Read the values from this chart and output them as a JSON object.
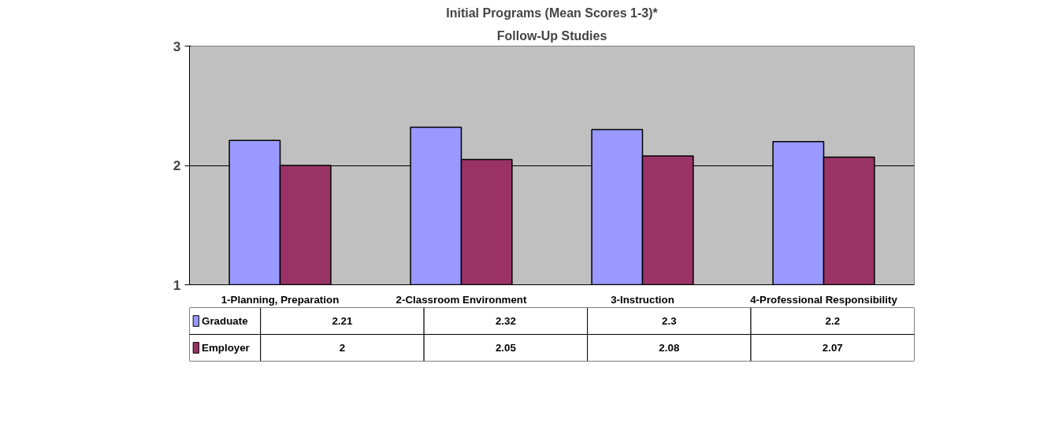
{
  "chart_data": {
    "type": "bar",
    "title": "Initial Programs (Mean Scores 1-3)*",
    "subtitle": "Follow-Up Studies",
    "categories": [
      "1-Planning, Preparation",
      "2-Classroom Environment",
      "3-Instruction",
      "4-Professional Responsibility"
    ],
    "series": [
      {
        "name": "Graduate",
        "color": "#9999ff",
        "values": [
          2.21,
          2.32,
          2.3,
          2.2
        ]
      },
      {
        "name": "Employer",
        "color": "#993366",
        "values": [
          2,
          2.05,
          2.08,
          2.07
        ]
      }
    ],
    "ylim": [
      1,
      3
    ],
    "yticks": [
      1,
      2,
      3
    ],
    "grid": "y",
    "data_labels": true,
    "legend": "bottom left"
  }
}
